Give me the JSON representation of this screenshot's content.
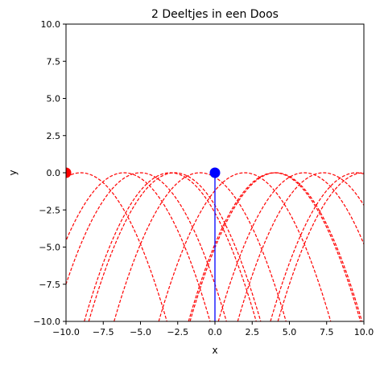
{
  "chart_data": {
    "type": "line",
    "title": "2 Deeltjes in een Doos",
    "xlabel": "x",
    "ylabel": "y",
    "xlim": [
      -10,
      10
    ],
    "ylim": [
      -10,
      10
    ],
    "x_ticks": [
      "−10.0",
      "−7.5",
      "−5.0",
      "−2.5",
      "0.0",
      "2.5",
      "5.0",
      "7.5",
      "10.0"
    ],
    "y_ticks": [
      "−10.0",
      "−7.5",
      "−5.0",
      "−2.5",
      "0.0",
      "2.5",
      "5.0",
      "7.5",
      "10.0"
    ],
    "grid": false,
    "legend": "none",
    "series": [
      {
        "color": "#ff0000",
        "style": "dashed",
        "trajectory": {
          "kind": "bouncing-parabolas",
          "vertex_y": 0,
          "curvature": -0.3,
          "bounce_x": [
            -10,
            10
          ],
          "bounce_y": [
            -10,
            0
          ],
          "vertices_x": [
            -9,
            -6.1,
            -5,
            -3,
            -2.7,
            -1,
            2,
            4,
            4.1,
            6,
            7.3,
            9.5,
            10
          ]
        },
        "marker": {
          "x": -10,
          "y": 0,
          "color": "#ff0000"
        }
      },
      {
        "color": "#0000ff",
        "style": "solid",
        "trajectory": {
          "kind": "vertical-line",
          "x": 0,
          "y_range": [
            -10,
            0
          ]
        },
        "marker": {
          "x": 0,
          "y": 0,
          "color": "#0000ff"
        }
      }
    ]
  }
}
